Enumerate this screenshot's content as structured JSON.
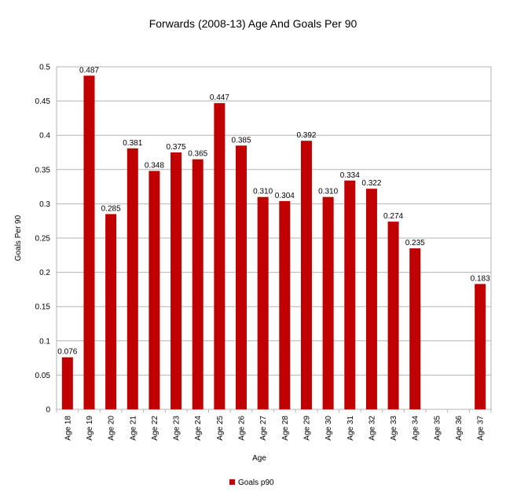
{
  "chart_data": {
    "type": "bar",
    "title": "Forwards (2008-13) Age And Goals Per 90",
    "xlabel": "Age",
    "ylabel": "Goals Per 90",
    "ylim": [
      0,
      0.5
    ],
    "yticks": [
      "0",
      "0.05",
      "0.1",
      "0.15",
      "0.2",
      "0.25",
      "0.3",
      "0.35",
      "0.4",
      "0.45",
      "0.5"
    ],
    "grid": true,
    "legend_position": "bottom",
    "categories": [
      "Age 18",
      "Age 19",
      "Age 20",
      "Age 21",
      "Age 22",
      "Age 23",
      "Age 24",
      "Age 25",
      "Age 26",
      "Age 27",
      "Age 28",
      "Age 29",
      "Age 30",
      "Age 31",
      "Age 32",
      "Age 33",
      "Age 34",
      "Age 35",
      "Age 36",
      "Age 37"
    ],
    "series": [
      {
        "name": "Goals p90",
        "color": "#c00000",
        "values": [
          0.076,
          0.487,
          0.285,
          0.381,
          0.348,
          0.375,
          0.365,
          0.447,
          0.385,
          0.31,
          0.304,
          0.392,
          0.31,
          0.334,
          0.322,
          0.274,
          0.235,
          null,
          null,
          0.183
        ],
        "labels": [
          "0.076",
          "0.487",
          "0.285",
          "0.381",
          "0.348",
          "0.375",
          "0.365",
          "0.447",
          "0.385",
          "0.310",
          "0.304",
          "0.392",
          "0.310",
          "0.334",
          "0.322",
          "0.274",
          "0.235",
          "",
          "",
          "0.183"
        ]
      }
    ]
  }
}
